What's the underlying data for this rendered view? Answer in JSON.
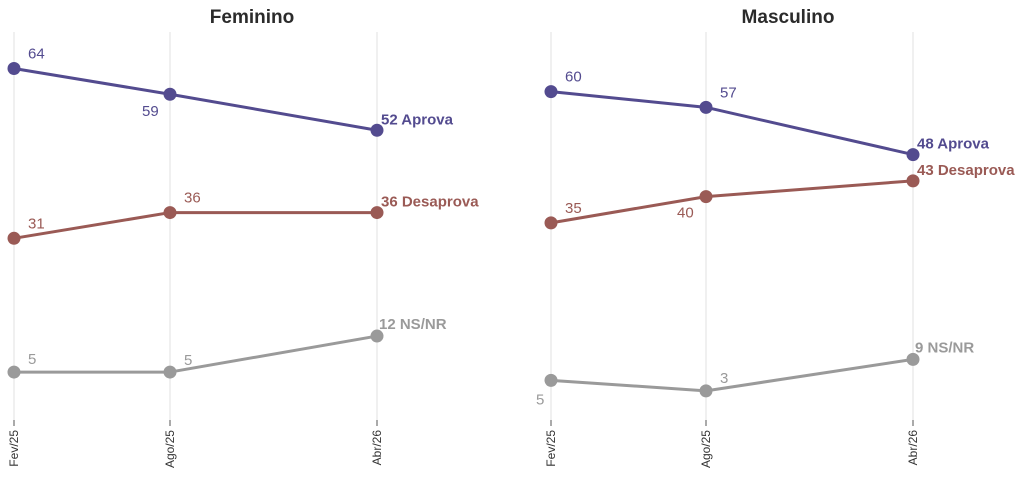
{
  "chart_data": [
    {
      "type": "line",
      "title": "Feminino",
      "x": [
        "Fev/25",
        "Ago/25",
        "Abr/26"
      ],
      "ylim": [
        0,
        70
      ],
      "grid": "vertical",
      "series": [
        {
          "name": "Aprova",
          "color": "#534b8f",
          "values": [
            64,
            59,
            52
          ],
          "labels": [
            "64",
            "59",
            "52 Aprova"
          ]
        },
        {
          "name": "Desaprova",
          "color": "#9a5a55",
          "values": [
            31,
            36,
            36
          ],
          "labels": [
            "31",
            "36",
            "36 Desaprova"
          ]
        },
        {
          "name": "NS/NR",
          "color": "#9a9a9a",
          "values": [
            5,
            5,
            12
          ],
          "labels": [
            "5",
            "5",
            "12 NS/NR"
          ]
        }
      ]
    },
    {
      "type": "line",
      "title": "Masculino",
      "x": [
        "Fev/25",
        "Ago/25",
        "Abr/26"
      ],
      "ylim": [
        0,
        70
      ],
      "grid": "vertical",
      "series": [
        {
          "name": "Aprova",
          "color": "#534b8f",
          "values": [
            60,
            57,
            48
          ],
          "labels": [
            "60",
            "57",
            "48 Aprova"
          ]
        },
        {
          "name": "Desaprova",
          "color": "#9a5a55",
          "values": [
            35,
            40,
            43
          ],
          "labels": [
            "35",
            "40",
            "43 Desaprova"
          ]
        },
        {
          "name": "NS/NR",
          "color": "#9a9a9a",
          "values": [
            5,
            3,
            9
          ],
          "labels": [
            "5",
            "3",
            "9 NS/NR"
          ]
        }
      ]
    }
  ]
}
